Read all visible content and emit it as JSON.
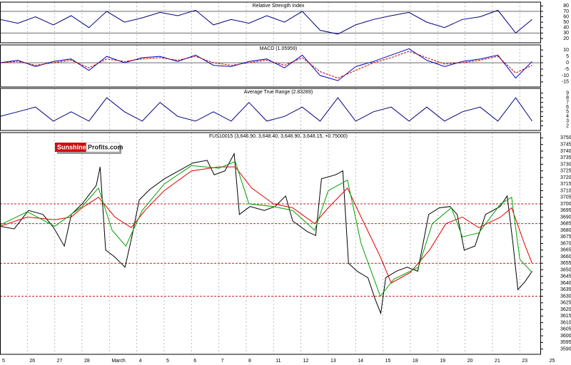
{
  "chart_data": [
    {
      "type": "line",
      "title": "Relative Strength Index",
      "xlim": [
        0,
        19.75
      ],
      "ylim": [
        12,
        87
      ],
      "yticks": [
        20,
        30,
        40,
        50,
        60,
        70,
        80
      ],
      "levels": [
        30,
        70
      ],
      "level_color": "#555555",
      "x": [
        0,
        0.65,
        1.3,
        1.95,
        2.6,
        3.25,
        3.9,
        4.55,
        5.2,
        5.85,
        6.5,
        7.15,
        7.8,
        8.45,
        9.1,
        9.75,
        10.4,
        11.05,
        11.7,
        12.35,
        13,
        13.65,
        14.3,
        14.95,
        15.6,
        16.25,
        16.9,
        17.55,
        18.2,
        18.85,
        19.45
      ],
      "series": [
        {
          "color": "#000080",
          "values": [
            55,
            48,
            60,
            45,
            62,
            40,
            70,
            50,
            58,
            68,
            62,
            72,
            45,
            55,
            48,
            62,
            50,
            70,
            35,
            28,
            45,
            55,
            62,
            68,
            50,
            40,
            55,
            60,
            72,
            30,
            55
          ]
        }
      ]
    },
    {
      "type": "line",
      "title": "MACD (1.05959)",
      "xlim": [
        0,
        19.75
      ],
      "ylim": [
        -19,
        14
      ],
      "yticks": [
        -15,
        -10,
        -5,
        0,
        5,
        10
      ],
      "levels": [
        0
      ],
      "level_color": "#555555",
      "x": [
        0,
        0.65,
        1.3,
        1.95,
        2.6,
        3.25,
        3.9,
        4.55,
        5.2,
        5.85,
        6.5,
        7.15,
        7.8,
        8.45,
        9.1,
        9.75,
        10.4,
        11.05,
        11.7,
        12.35,
        13,
        13.65,
        14.3,
        14.95,
        15.6,
        16.25,
        16.9,
        17.55,
        18.2,
        18.85,
        19.45
      ],
      "series": [
        {
          "color": "#0000c0",
          "values": [
            0,
            2,
            -3,
            1,
            3,
            -6,
            5,
            0,
            4,
            5,
            1,
            6,
            -2,
            -3,
            1,
            3,
            -4,
            6,
            -10,
            -14,
            -3,
            1,
            6,
            11,
            2,
            -3,
            1,
            3,
            6,
            -12,
            1
          ]
        },
        {
          "color": "#c00000",
          "style": "dashed",
          "values": [
            0,
            1,
            -2,
            0,
            2,
            -4,
            3,
            1,
            3,
            4,
            2,
            5,
            0,
            -2,
            0,
            2,
            -2,
            4,
            -7,
            -12,
            -6,
            0,
            4,
            9,
            4,
            -1,
            0,
            2,
            5,
            -8,
            -2
          ]
        }
      ]
    },
    {
      "type": "line",
      "title": "Average True Range (2.83289)",
      "xlim": [
        0,
        19.75
      ],
      "ylim": [
        1,
        10
      ],
      "yticks": [
        2,
        3,
        4,
        5,
        6,
        7,
        8,
        9
      ],
      "x": [
        0,
        0.65,
        1.3,
        1.95,
        2.6,
        3.25,
        3.9,
        4.55,
        5.2,
        5.85,
        6.5,
        7.15,
        7.8,
        8.45,
        9.1,
        9.75,
        10.4,
        11.05,
        11.7,
        12.35,
        13,
        13.65,
        14.3,
        14.95,
        15.6,
        16.25,
        16.9,
        17.55,
        18.2,
        18.85,
        19.45
      ],
      "series": [
        {
          "color": "#000080",
          "values": [
            4,
            5,
            6,
            3,
            5,
            3,
            8,
            5,
            3,
            7,
            4,
            3,
            5,
            3,
            7,
            3,
            4,
            6,
            3,
            8,
            3,
            5,
            6,
            3,
            6,
            3,
            5,
            6,
            3,
            8,
            3
          ]
        }
      ]
    },
    {
      "type": "line",
      "title": "FUS10015 (3,646.90, 3,648.40, 3,646.90, 3,648.15, +0.75000)",
      "logo": {
        "left": "Sunshine",
        "right": "Profits.com"
      },
      "xlim": [
        0,
        19.75
      ],
      "ylim": [
        3586,
        3754
      ],
      "yticks": [
        3590,
        3595,
        3600,
        3605,
        3610,
        3615,
        3620,
        3625,
        3630,
        3635,
        3640,
        3645,
        3650,
        3655,
        3660,
        3665,
        3670,
        3675,
        3680,
        3685,
        3690,
        3695,
        3700,
        3705,
        3710,
        3715,
        3720,
        3725,
        3730,
        3735,
        3740,
        3745,
        3750
      ],
      "xticks": [
        {
          "value": 0,
          "label": "5"
        },
        {
          "value": 1,
          "label": "26"
        },
        {
          "value": 2,
          "label": "27"
        },
        {
          "value": 3,
          "label": "28"
        },
        {
          "value": 4,
          "label": "March"
        },
        {
          "value": 5,
          "label": "4"
        },
        {
          "value": 6,
          "label": "5"
        },
        {
          "value": 7,
          "label": "6"
        },
        {
          "value": 8,
          "label": "7"
        },
        {
          "value": 9,
          "label": "8"
        },
        {
          "value": 10,
          "label": "11"
        },
        {
          "value": 11,
          "label": "12"
        },
        {
          "value": 12,
          "label": "13"
        },
        {
          "value": 13,
          "label": "14"
        },
        {
          "value": 14,
          "label": "15"
        },
        {
          "value": 15,
          "label": "18"
        },
        {
          "value": 16,
          "label": "19"
        },
        {
          "value": 17,
          "label": "20"
        },
        {
          "value": 18,
          "label": "21"
        },
        {
          "value": 19,
          "label": "23"
        },
        {
          "value": 20,
          "label": "25"
        }
      ],
      "levels": [
        3700,
        3685,
        3655,
        3630
      ],
      "level_color": "#c00000",
      "series": [
        {
          "color": "#000000",
          "x": [
            0,
            0.52,
            1.04,
            1.57,
            1.96,
            2.35,
            2.61,
            3.0,
            3.52,
            3.66,
            3.86,
            4.18,
            4.57,
            4.83,
            5.09,
            5.48,
            6.01,
            6.53,
            7.05,
            7.57,
            7.83,
            8.22,
            8.56,
            8.75,
            9.14,
            9.66,
            10.05,
            10.44,
            10.7,
            11.23,
            11.54,
            11.75,
            12.27,
            12.53,
            12.74,
            13.05,
            13.45,
            13.71,
            13.92,
            14.1,
            14.49,
            14.88,
            15.27,
            15.67,
            16.06,
            16.45,
            16.71,
            16.97,
            17.36,
            17.75,
            18.28,
            18.54,
            18.75,
            18.93,
            19.19,
            19.45
          ],
          "values": [
            3683,
            3681,
            3695,
            3692,
            3682,
            3668,
            3692,
            3700,
            3714,
            3728,
            3665,
            3660,
            3652,
            3676,
            3703,
            3711,
            3719,
            3725,
            3731,
            3733,
            3722,
            3725,
            3738,
            3692,
            3698,
            3695,
            3698,
            3706,
            3687,
            3679,
            3676,
            3719,
            3722,
            3725,
            3655,
            3649,
            3644,
            3628,
            3617,
            3644,
            3649,
            3652,
            3649,
            3692,
            3697,
            3698,
            3692,
            3665,
            3668,
            3692,
            3698,
            3706,
            3670,
            3635,
            3641,
            3649
          ]
        },
        {
          "color": "#e00000",
          "x": [
            0,
            1,
            2,
            2.6,
            3.0,
            3.6,
            4.2,
            4.8,
            5.3,
            6,
            7,
            8,
            8.6,
            9.2,
            10,
            10.7,
            11.5,
            12,
            12.7,
            13.2,
            13.9,
            14.3,
            15,
            15.7,
            16.3,
            16.9,
            17.5,
            18.3,
            18.7,
            19.2,
            19.45
          ],
          "values": [
            3683,
            3690,
            3688,
            3690,
            3697,
            3705,
            3690,
            3682,
            3695,
            3710,
            3725,
            3728,
            3728,
            3712,
            3700,
            3697,
            3685,
            3697,
            3712,
            3690,
            3660,
            3640,
            3648,
            3665,
            3685,
            3690,
            3682,
            3690,
            3697,
            3668,
            3655
          ]
        },
        {
          "color": "#00a000",
          "x": [
            0,
            1,
            2,
            3,
            3.6,
            4.1,
            4.6,
            5.2,
            6,
            7,
            8,
            8.6,
            9.1,
            10,
            10.7,
            11.5,
            12,
            12.7,
            13.2,
            13.9,
            14.4,
            15.3,
            15.8,
            16.5,
            16.9,
            17.5,
            18.3,
            18.7,
            19.0,
            19.45
          ],
          "values": [
            3684,
            3694,
            3683,
            3698,
            3712,
            3680,
            3668,
            3695,
            3715,
            3729,
            3727,
            3732,
            3700,
            3698,
            3695,
            3680,
            3710,
            3718,
            3670,
            3630,
            3643,
            3652,
            3685,
            3697,
            3675,
            3678,
            3700,
            3705,
            3658,
            3648
          ]
        }
      ]
    }
  ]
}
